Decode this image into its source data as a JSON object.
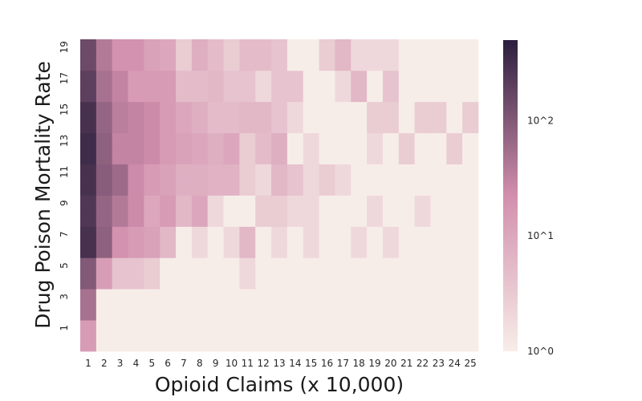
{
  "chart_data": {
    "type": "heatmap",
    "title": "",
    "xlabel": "Opioid Claims (x 10,000)",
    "ylabel": "Drug Poison Mortality Rate",
    "x": [
      1,
      2,
      3,
      4,
      5,
      6,
      7,
      8,
      9,
      10,
      11,
      12,
      13,
      14,
      15,
      16,
      17,
      18,
      19,
      20,
      21,
      22,
      23,
      24,
      25
    ],
    "y": [
      0,
      1,
      2,
      3,
      4,
      5,
      6,
      7,
      8,
      9,
      10,
      11,
      12,
      13,
      14,
      15,
      16,
      17,
      18,
      19
    ],
    "y_tick_labels": [
      "1",
      "3",
      "5",
      "7",
      "9",
      "11",
      "13",
      "15",
      "17",
      "19"
    ],
    "y_tick_rows": [
      1,
      3,
      5,
      7,
      9,
      11,
      13,
      15,
      17,
      19
    ],
    "color_scale": "log",
    "colorbar": {
      "range": [
        1,
        500
      ],
      "ticks": [
        1,
        10,
        100
      ],
      "tick_labels": [
        "10^0",
        "10^1",
        "10^2"
      ]
    },
    "colors": {
      "low": "#f7ede8",
      "mid": "#d28fad",
      "high": "#2c1e3d"
    },
    "values": [
      [
        15,
        1,
        1,
        1,
        1,
        1,
        1,
        1,
        1,
        1,
        1,
        1,
        1,
        1,
        1,
        1,
        1,
        1,
        1,
        1,
        1,
        1,
        1,
        1,
        1
      ],
      [
        15,
        1,
        1,
        1,
        1,
        1,
        1,
        1,
        1,
        1,
        1,
        1,
        1,
        1,
        1,
        1,
        1,
        1,
        1,
        1,
        1,
        1,
        1,
        1,
        1
      ],
      [
        50,
        1,
        1,
        1,
        1,
        1,
        1,
        1,
        1,
        1,
        1,
        1,
        1,
        1,
        1,
        1,
        1,
        1,
        1,
        1,
        1,
        1,
        1,
        1,
        1
      ],
      [
        50,
        1,
        1,
        1,
        1,
        1,
        1,
        1,
        1,
        1,
        1,
        1,
        1,
        1,
        1,
        1,
        1,
        1,
        1,
        1,
        1,
        1,
        1,
        1,
        1
      ],
      [
        100,
        14,
        4,
        4,
        3,
        1,
        1,
        1,
        1,
        1,
        2,
        1,
        1,
        1,
        1,
        1,
        1,
        1,
        1,
        1,
        1,
        1,
        1,
        1,
        1
      ],
      [
        100,
        14,
        4,
        4,
        3,
        1,
        1,
        1,
        1,
        1,
        2,
        1,
        1,
        1,
        1,
        1,
        1,
        1,
        1,
        1,
        1,
        1,
        1,
        1,
        1
      ],
      [
        300,
        80,
        20,
        15,
        12,
        6,
        1,
        2,
        1,
        2,
        6,
        1,
        2,
        1,
        2,
        1,
        1,
        2,
        1,
        2,
        1,
        1,
        1,
        1,
        1
      ],
      [
        300,
        80,
        20,
        15,
        12,
        6,
        1,
        2,
        1,
        2,
        6,
        1,
        2,
        1,
        2,
        1,
        1,
        2,
        1,
        2,
        1,
        1,
        1,
        1,
        1
      ],
      [
        250,
        70,
        40,
        25,
        10,
        15,
        6,
        10,
        2,
        1,
        1,
        3,
        3,
        2,
        2,
        1,
        1,
        1,
        2,
        1,
        1,
        2,
        1,
        1,
        1
      ],
      [
        250,
        70,
        40,
        25,
        10,
        15,
        6,
        10,
        2,
        1,
        1,
        3,
        3,
        2,
        2,
        1,
        1,
        1,
        2,
        1,
        1,
        2,
        1,
        1,
        1
      ],
      [
        300,
        90,
        60,
        25,
        15,
        12,
        8,
        8,
        7,
        7,
        3,
        2,
        6,
        4,
        2,
        3,
        2,
        1,
        1,
        1,
        1,
        1,
        1,
        1,
        1
      ],
      [
        300,
        90,
        60,
        25,
        15,
        12,
        8,
        8,
        7,
        7,
        3,
        2,
        6,
        4,
        2,
        3,
        2,
        1,
        1,
        1,
        1,
        1,
        1,
        1,
        1
      ],
      [
        350,
        80,
        30,
        30,
        25,
        15,
        12,
        10,
        8,
        10,
        3,
        5,
        8,
        1,
        2,
        1,
        1,
        1,
        2,
        1,
        3,
        1,
        1,
        3,
        1
      ],
      [
        350,
        80,
        30,
        30,
        25,
        15,
        12,
        10,
        8,
        10,
        3,
        5,
        8,
        1,
        2,
        1,
        1,
        1,
        2,
        1,
        3,
        1,
        1,
        3,
        1
      ],
      [
        300,
        70,
        35,
        30,
        25,
        15,
        10,
        8,
        5,
        5,
        6,
        6,
        4,
        2,
        1,
        1,
        1,
        1,
        3,
        3,
        1,
        3,
        3,
        1,
        3
      ],
      [
        300,
        70,
        35,
        30,
        25,
        15,
        10,
        8,
        5,
        5,
        6,
        6,
        4,
        2,
        1,
        1,
        1,
        1,
        3,
        3,
        1,
        3,
        3,
        1,
        3
      ],
      [
        200,
        50,
        30,
        15,
        15,
        15,
        5,
        5,
        6,
        4,
        4,
        2,
        4,
        4,
        1,
        1,
        2,
        6,
        1,
        4,
        1,
        1,
        1,
        1,
        1
      ],
      [
        200,
        50,
        30,
        15,
        15,
        15,
        5,
        5,
        6,
        4,
        4,
        2,
        4,
        4,
        1,
        1,
        2,
        6,
        1,
        4,
        1,
        1,
        1,
        1,
        1
      ],
      [
        150,
        40,
        20,
        20,
        12,
        10,
        3,
        8,
        5,
        3,
        5,
        5,
        4,
        1,
        1,
        3,
        6,
        2,
        2,
        2,
        1,
        1,
        1,
        1,
        1
      ],
      [
        150,
        40,
        20,
        20,
        12,
        10,
        3,
        8,
        5,
        3,
        5,
        5,
        4,
        1,
        1,
        3,
        6,
        2,
        2,
        2,
        1,
        1,
        1,
        1,
        1
      ]
    ]
  }
}
